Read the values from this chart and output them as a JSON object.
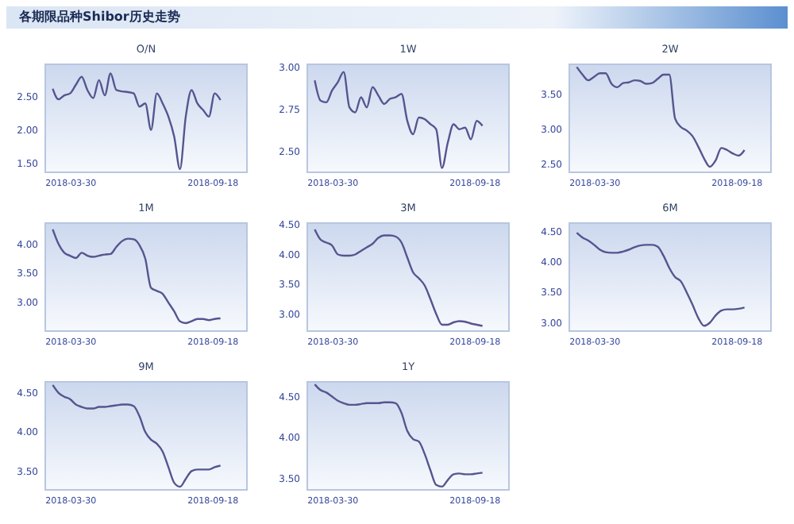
{
  "chart_data": [
    {
      "type": "line",
      "title": "O/N",
      "annotations": [
        "各期限品种Shibor历史走势"
      ],
      "color": "#55558f",
      "x": [
        "2018-03-08",
        "2018-03-15",
        "2018-03-22",
        "2018-03-29",
        "2018-04-05",
        "2018-04-12",
        "2018-04-19",
        "2018-04-26",
        "2018-05-03",
        "2018-05-10",
        "2018-05-17",
        "2018-05-24",
        "2018-05-31",
        "2018-06-07",
        "2018-06-14",
        "2018-06-21",
        "2018-06-28",
        "2018-07-05",
        "2018-07-12",
        "2018-07-19",
        "2018-07-26",
        "2018-08-02",
        "2018-08-09",
        "2018-08-16",
        "2018-08-23",
        "2018-08-30",
        "2018-09-06",
        "2018-09-13",
        "2018-09-20",
        "2018-09-27"
      ],
      "values": [
        2.62,
        2.46,
        2.52,
        2.55,
        2.68,
        2.8,
        2.6,
        2.48,
        2.75,
        2.52,
        2.85,
        2.6,
        2.58,
        2.57,
        2.55,
        2.35,
        2.4,
        2.0,
        2.55,
        2.4,
        2.2,
        1.9,
        1.41,
        2.2,
        2.6,
        2.4,
        2.3,
        2.2,
        2.55,
        2.45
      ],
      "xlim": [
        "2018-02-26",
        "2018-10-30"
      ],
      "xticks": [
        "2018-03-30",
        "2018-09-18"
      ],
      "ylim": [
        1.35,
        3.0
      ],
      "yticks": [
        {
          "value": 1.5,
          "label": "1.50"
        },
        {
          "value": 2.0,
          "label": "2.00"
        },
        {
          "value": 2.5,
          "label": "2.50"
        }
      ]
    },
    {
      "type": "line",
      "title": "1W",
      "color": "#55558f",
      "x": [
        "2018-03-08",
        "2018-03-15",
        "2018-03-22",
        "2018-03-29",
        "2018-04-05",
        "2018-04-12",
        "2018-04-19",
        "2018-04-26",
        "2018-05-03",
        "2018-05-10",
        "2018-05-17",
        "2018-05-24",
        "2018-05-31",
        "2018-06-07",
        "2018-06-14",
        "2018-06-21",
        "2018-06-28",
        "2018-07-05",
        "2018-07-12",
        "2018-07-19",
        "2018-07-26",
        "2018-08-02",
        "2018-08-09",
        "2018-08-16",
        "2018-08-23",
        "2018-08-30",
        "2018-09-06",
        "2018-09-13",
        "2018-09-20",
        "2018-09-27"
      ],
      "values": [
        2.92,
        2.8,
        2.79,
        2.86,
        2.91,
        2.97,
        2.76,
        2.73,
        2.82,
        2.76,
        2.88,
        2.83,
        2.78,
        2.81,
        2.82,
        2.84,
        2.68,
        2.6,
        2.7,
        2.69,
        2.66,
        2.63,
        2.4,
        2.55,
        2.66,
        2.63,
        2.64,
        2.57,
        2.68,
        2.65
      ],
      "xlim": [
        "2018-02-26",
        "2018-10-30"
      ],
      "xticks": [
        "2018-03-30",
        "2018-09-18"
      ],
      "ylim": [
        2.37,
        3.02
      ],
      "yticks": [
        {
          "value": 2.5,
          "label": "2.50"
        },
        {
          "value": 2.75,
          "label": "2.75"
        },
        {
          "value": 3.0,
          "label": "3.00"
        }
      ]
    },
    {
      "type": "line",
      "title": "2W",
      "color": "#55558f",
      "x": [
        "2018-03-08",
        "2018-03-15",
        "2018-03-22",
        "2018-03-29",
        "2018-04-05",
        "2018-04-12",
        "2018-04-19",
        "2018-04-26",
        "2018-05-03",
        "2018-05-10",
        "2018-05-17",
        "2018-05-24",
        "2018-05-31",
        "2018-06-07",
        "2018-06-14",
        "2018-06-21",
        "2018-06-28",
        "2018-07-05",
        "2018-07-12",
        "2018-07-19",
        "2018-07-26",
        "2018-08-02",
        "2018-08-09",
        "2018-08-16",
        "2018-08-23",
        "2018-08-30",
        "2018-09-06",
        "2018-09-13",
        "2018-09-20",
        "2018-09-27"
      ],
      "values": [
        3.89,
        3.78,
        3.7,
        3.75,
        3.8,
        3.8,
        3.65,
        3.6,
        3.66,
        3.67,
        3.7,
        3.69,
        3.65,
        3.66,
        3.72,
        3.78,
        3.78,
        3.15,
        3.03,
        2.98,
        2.9,
        2.75,
        2.58,
        2.46,
        2.55,
        2.73,
        2.7,
        2.65,
        2.62,
        2.7
      ],
      "xlim": [
        "2018-02-26",
        "2018-10-30"
      ],
      "xticks": [
        "2018-03-30",
        "2018-09-18"
      ],
      "ylim": [
        2.37,
        3.94
      ],
      "yticks": [
        {
          "value": 2.5,
          "label": "2.50"
        },
        {
          "value": 3.0,
          "label": "3.00"
        },
        {
          "value": 3.5,
          "label": "3.50"
        }
      ]
    },
    {
      "type": "line",
      "title": "1M",
      "color": "#55558f",
      "x": [
        "2018-03-08",
        "2018-03-15",
        "2018-03-22",
        "2018-03-29",
        "2018-04-05",
        "2018-04-12",
        "2018-04-19",
        "2018-04-26",
        "2018-05-03",
        "2018-05-10",
        "2018-05-17",
        "2018-05-24",
        "2018-05-31",
        "2018-06-07",
        "2018-06-14",
        "2018-06-21",
        "2018-06-28",
        "2018-07-05",
        "2018-07-12",
        "2018-07-19",
        "2018-07-26",
        "2018-08-02",
        "2018-08-09",
        "2018-08-16",
        "2018-08-23",
        "2018-08-30",
        "2018-09-06",
        "2018-09-13",
        "2018-09-20",
        "2018-09-27"
      ],
      "values": [
        4.25,
        4.0,
        3.85,
        3.8,
        3.76,
        3.85,
        3.8,
        3.78,
        3.8,
        3.82,
        3.83,
        3.95,
        4.05,
        4.09,
        4.08,
        3.98,
        3.75,
        3.25,
        3.2,
        3.15,
        3.0,
        2.85,
        2.68,
        2.65,
        2.68,
        2.72,
        2.72,
        2.7,
        2.72,
        2.73
      ],
      "xlim": [
        "2018-02-26",
        "2018-10-30"
      ],
      "xticks": [
        "2018-03-30",
        "2018-09-18"
      ],
      "ylim": [
        2.5,
        4.37
      ],
      "yticks": [
        {
          "value": 3.0,
          "label": "3.00"
        },
        {
          "value": 3.5,
          "label": "3.50"
        },
        {
          "value": 4.0,
          "label": "4.00"
        }
      ]
    },
    {
      "type": "line",
      "title": "3M",
      "color": "#55558f",
      "x": [
        "2018-03-08",
        "2018-03-15",
        "2018-03-22",
        "2018-03-29",
        "2018-04-05",
        "2018-04-12",
        "2018-04-19",
        "2018-04-26",
        "2018-05-03",
        "2018-05-10",
        "2018-05-17",
        "2018-05-24",
        "2018-05-31",
        "2018-06-07",
        "2018-06-14",
        "2018-06-21",
        "2018-06-28",
        "2018-07-05",
        "2018-07-12",
        "2018-07-19",
        "2018-07-26",
        "2018-08-02",
        "2018-08-09",
        "2018-08-16",
        "2018-08-23",
        "2018-08-30",
        "2018-09-06",
        "2018-09-13",
        "2018-09-20",
        "2018-09-27"
      ],
      "values": [
        4.42,
        4.25,
        4.2,
        4.15,
        4.0,
        3.98,
        3.98,
        4.0,
        4.06,
        4.12,
        4.18,
        4.28,
        4.32,
        4.32,
        4.3,
        4.2,
        3.95,
        3.7,
        3.6,
        3.48,
        3.25,
        3.0,
        2.82,
        2.82,
        2.86,
        2.88,
        2.87,
        2.84,
        2.82,
        2.8
      ],
      "xlim": [
        "2018-02-26",
        "2018-10-30"
      ],
      "xticks": [
        "2018-03-30",
        "2018-09-18"
      ],
      "ylim": [
        2.7,
        4.54
      ],
      "yticks": [
        {
          "value": 3.0,
          "label": "3.00"
        },
        {
          "value": 3.5,
          "label": "3.50"
        },
        {
          "value": 4.0,
          "label": "4.00"
        },
        {
          "value": 4.5,
          "label": "4.50"
        }
      ]
    },
    {
      "type": "line",
      "title": "6M",
      "color": "#55558f",
      "x": [
        "2018-03-08",
        "2018-03-15",
        "2018-03-22",
        "2018-03-29",
        "2018-04-05",
        "2018-04-12",
        "2018-04-19",
        "2018-04-26",
        "2018-05-03",
        "2018-05-10",
        "2018-05-17",
        "2018-05-24",
        "2018-05-31",
        "2018-06-07",
        "2018-06-14",
        "2018-06-21",
        "2018-06-28",
        "2018-07-05",
        "2018-07-12",
        "2018-07-19",
        "2018-07-26",
        "2018-08-02",
        "2018-08-09",
        "2018-08-16",
        "2018-08-23",
        "2018-08-30",
        "2018-09-06",
        "2018-09-13",
        "2018-09-20",
        "2018-09-27"
      ],
      "values": [
        4.48,
        4.4,
        4.35,
        4.28,
        4.2,
        4.16,
        4.15,
        4.15,
        4.17,
        4.2,
        4.24,
        4.27,
        4.28,
        4.28,
        4.25,
        4.1,
        3.9,
        3.75,
        3.68,
        3.5,
        3.3,
        3.08,
        2.95,
        3.0,
        3.12,
        3.2,
        3.22,
        3.22,
        3.23,
        3.25
      ],
      "xlim": [
        "2018-02-26",
        "2018-10-30"
      ],
      "xticks": [
        "2018-03-30",
        "2018-09-18"
      ],
      "ylim": [
        2.85,
        4.65
      ],
      "yticks": [
        {
          "value": 3.0,
          "label": "3.00"
        },
        {
          "value": 3.5,
          "label": "3.50"
        },
        {
          "value": 4.0,
          "label": "4.00"
        },
        {
          "value": 4.5,
          "label": "4.50"
        }
      ]
    },
    {
      "type": "line",
      "title": "9M",
      "color": "#55558f",
      "x": [
        "2018-03-08",
        "2018-03-15",
        "2018-03-22",
        "2018-03-29",
        "2018-04-05",
        "2018-04-12",
        "2018-04-19",
        "2018-04-26",
        "2018-05-03",
        "2018-05-10",
        "2018-05-17",
        "2018-05-24",
        "2018-05-31",
        "2018-06-07",
        "2018-06-14",
        "2018-06-21",
        "2018-06-28",
        "2018-07-05",
        "2018-07-12",
        "2018-07-19",
        "2018-07-26",
        "2018-08-02",
        "2018-08-09",
        "2018-08-16",
        "2018-08-23",
        "2018-08-30",
        "2018-09-06",
        "2018-09-13",
        "2018-09-20",
        "2018-09-27"
      ],
      "values": [
        4.6,
        4.5,
        4.45,
        4.42,
        4.35,
        4.32,
        4.3,
        4.3,
        4.32,
        4.32,
        4.33,
        4.34,
        4.35,
        4.35,
        4.33,
        4.2,
        4.0,
        3.9,
        3.85,
        3.75,
        3.55,
        3.35,
        3.3,
        3.4,
        3.5,
        3.52,
        3.52,
        3.52,
        3.55,
        3.57
      ],
      "xlim": [
        "2018-02-26",
        "2018-10-30"
      ],
      "xticks": [
        "2018-03-30",
        "2018-09-18"
      ],
      "ylim": [
        3.25,
        4.65
      ],
      "yticks": [
        {
          "value": 3.5,
          "label": "3.50"
        },
        {
          "value": 4.0,
          "label": "4.00"
        },
        {
          "value": 4.5,
          "label": "4.50"
        }
      ]
    },
    {
      "type": "line",
      "title": "1Y",
      "color": "#55558f",
      "x": [
        "2018-03-08",
        "2018-03-15",
        "2018-03-22",
        "2018-03-29",
        "2018-04-05",
        "2018-04-12",
        "2018-04-19",
        "2018-04-26",
        "2018-05-03",
        "2018-05-10",
        "2018-05-17",
        "2018-05-24",
        "2018-05-31",
        "2018-06-07",
        "2018-06-14",
        "2018-06-21",
        "2018-06-28",
        "2018-07-05",
        "2018-07-12",
        "2018-07-19",
        "2018-07-26",
        "2018-08-02",
        "2018-08-09",
        "2018-08-16",
        "2018-08-23",
        "2018-08-30",
        "2018-09-06",
        "2018-09-13",
        "2018-09-20",
        "2018-09-27"
      ],
      "values": [
        4.65,
        4.58,
        4.55,
        4.5,
        4.45,
        4.42,
        4.4,
        4.4,
        4.41,
        4.42,
        4.42,
        4.42,
        4.43,
        4.43,
        4.42,
        4.3,
        4.08,
        3.98,
        3.95,
        3.8,
        3.6,
        3.42,
        3.4,
        3.48,
        3.55,
        3.56,
        3.55,
        3.55,
        3.56,
        3.57
      ],
      "xlim": [
        "2018-02-26",
        "2018-10-30"
      ],
      "xticks": [
        "2018-03-30",
        "2018-09-18"
      ],
      "ylim": [
        3.35,
        4.69
      ],
      "yticks": [
        {
          "value": 3.5,
          "label": "3.50"
        },
        {
          "value": 4.0,
          "label": "4.00"
        },
        {
          "value": 4.5,
          "label": "4.50"
        }
      ]
    }
  ]
}
